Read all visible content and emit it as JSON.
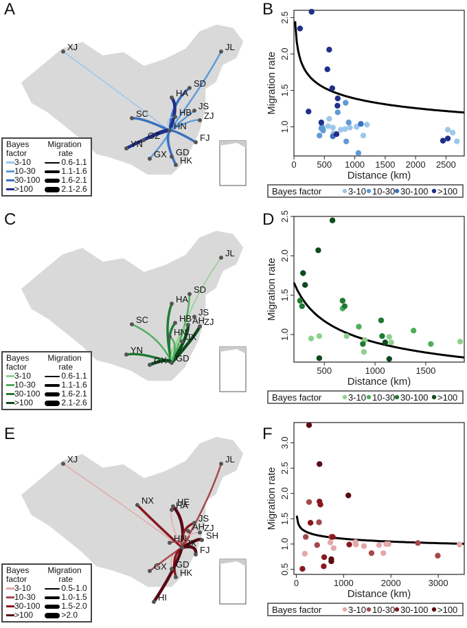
{
  "chart_data": [
    {
      "panel": "A",
      "type": "map",
      "legend": {
        "bayes_title": [
          "Bayes",
          "factor"
        ],
        "rate_title": [
          "Migration",
          "rate"
        ],
        "bayes_levels": [
          "3-10",
          "10-30",
          "30-100",
          ">100"
        ],
        "rate_levels": [
          "0.6-1.1",
          "1.1-1.6",
          "1.6-2.1",
          "2.1-2.6"
        ]
      },
      "colors": [
        "#9cc7ea",
        "#5d9bd6",
        "#3b6fc0",
        "#1f2f8a"
      ],
      "locations": [
        "XJ",
        "JL",
        "SD",
        "HA",
        "HB",
        "JS",
        "SC",
        "GZ",
        "HN",
        "ZJ",
        "FJ",
        "YN",
        "GD",
        "GX",
        "HK"
      ]
    },
    {
      "panel": "B",
      "type": "scatter",
      "xlabel": "Distance (km)",
      "ylabel": "Migration rate",
      "xlim": [
        0,
        2800
      ],
      "ylim": [
        0.6,
        2.6
      ],
      "xticks": [
        0,
        500,
        1000,
        1500,
        2000,
        2500
      ],
      "yticks": [
        1.0,
        1.5,
        2.0,
        2.5
      ],
      "legend_title": "Bayes factor",
      "legend_placement": "bottom",
      "categories": [
        "3-10",
        "10-30",
        "30-100",
        ">100"
      ],
      "colors": [
        "#9cc7ea",
        "#5d9bd6",
        "#3b6fc0",
        "#1f2f8a"
      ],
      "fit": {
        "a": 2.45,
        "k": 0.145,
        "x0": 20
      },
      "series": [
        {
          "name": "3-10",
          "points": [
            [
              580,
              1.11
            ],
            [
              560,
              1.01
            ],
            [
              640,
              0.99
            ],
            [
              770,
              0.96
            ],
            [
              840,
              0.97
            ],
            [
              920,
              0.99
            ],
            [
              1030,
              1.0
            ],
            [
              1200,
              1.03
            ],
            [
              1140,
              0.88
            ],
            [
              2530,
              0.96
            ],
            [
              2610,
              0.92
            ],
            [
              480,
              0.97
            ],
            [
              650,
              0.91
            ],
            [
              2680,
              0.8
            ]
          ]
        },
        {
          "name": "10-30",
          "points": [
            [
              420,
              0.88
            ],
            [
              450,
              0.98
            ],
            [
              480,
              0.95
            ],
            [
              720,
              1.2
            ],
            [
              850,
              1.33
            ],
            [
              900,
              1.06
            ],
            [
              860,
              0.8
            ],
            [
              1060,
              0.64
            ],
            [
              460,
              1.0
            ]
          ]
        },
        {
          "name": "30-100",
          "points": [
            [
              640,
              0.87
            ],
            [
              1100,
              1.04
            ]
          ]
        },
        {
          "name": ">100",
          "points": [
            [
              290,
              2.58
            ],
            [
              100,
              2.35
            ],
            [
              580,
              2.06
            ],
            [
              550,
              1.79
            ],
            [
              630,
              1.53
            ],
            [
              720,
              1.39
            ],
            [
              715,
              1.29
            ],
            [
              240,
              1.21
            ],
            [
              450,
              1.06
            ],
            [
              700,
              0.9
            ],
            [
              2450,
              0.81
            ],
            [
              2530,
              0.84
            ]
          ]
        }
      ]
    },
    {
      "panel": "C",
      "type": "map",
      "legend": {
        "bayes_title": [
          "Bayes",
          "factor"
        ],
        "rate_title": [
          "Migration",
          "rate"
        ],
        "bayes_levels": [
          "3-10",
          "10-30",
          "30-100",
          ">100"
        ],
        "rate_levels": [
          "0.6-1.1",
          "1.1-1.6",
          "1.6-2.1",
          "2.1-2.6"
        ]
      },
      "colors": [
        "#8fd08f",
        "#4fae5c",
        "#1f7a34",
        "#0d4a1c"
      ],
      "locations": [
        "JL",
        "SD",
        "HA",
        "AH",
        "JS",
        "SC",
        "HB",
        "ZJ",
        "JX",
        "HN",
        "YN",
        "GX",
        "GD"
      ]
    },
    {
      "panel": "D",
      "type": "scatter",
      "xlabel": "Distance (km)",
      "ylabel": "Migration rate",
      "xlim": [
        200,
        1880
      ],
      "ylim": [
        0.65,
        2.5
      ],
      "xticks": [
        500,
        1000,
        1500
      ],
      "yticks": [
        1.0,
        1.5,
        2.0,
        2.5
      ],
      "legend_title": "Bayes factor",
      "legend_placement": "bottom",
      "categories": [
        "3-10",
        "10-30",
        "30-100",
        ">100"
      ],
      "colors": [
        "#8fd08f",
        "#4fae5c",
        "#1f7a34",
        "#0d4a1c"
      ],
      "fit": {
        "a": 1.66,
        "k": 0.38,
        "x0": 200
      },
      "series": [
        {
          "name": "3-10",
          "points": [
            [
              370,
              0.95
            ],
            [
              450,
              0.98
            ],
            [
              720,
              0.98
            ],
            [
              900,
              0.93
            ],
            [
              890,
              0.78
            ],
            [
              1140,
              0.97
            ],
            [
              1160,
              0.9
            ],
            [
              1840,
              0.91
            ]
          ]
        },
        {
          "name": "10-30",
          "points": [
            [
              680,
              1.33
            ],
            [
              840,
              1.1
            ],
            [
              1380,
              1.05
            ],
            [
              1550,
              0.88
            ]
          ]
        },
        {
          "name": "30-100",
          "points": [
            [
              260,
              1.43
            ],
            [
              280,
              1.36
            ],
            [
              680,
              1.43
            ],
            [
              700,
              1.36
            ],
            [
              1060,
              1.18
            ],
            [
              1070,
              0.98
            ],
            [
              880,
              0.88
            ]
          ]
        },
        {
          "name": ">100",
          "points": [
            [
              580,
              2.45
            ],
            [
              440,
              2.07
            ],
            [
              290,
              1.78
            ],
            [
              310,
              1.63
            ],
            [
              450,
              0.7
            ],
            [
              1100,
              0.9
            ],
            [
              1140,
              0.69
            ]
          ]
        }
      ]
    },
    {
      "panel": "E",
      "type": "map",
      "legend": {
        "bayes_title": [
          "Bayes",
          "factor"
        ],
        "rate_title": [
          "Migration",
          "rate"
        ],
        "bayes_levels": [
          "3-10",
          "10-30",
          "30-100",
          ">100"
        ],
        "rate_levels": [
          "0.5-1.0",
          "1.0-1.5",
          "1.5-2.0",
          ">2.0"
        ]
      },
      "colors": [
        "#e3a8aa",
        "#a5484d",
        "#8a1820",
        "#5a0a12"
      ],
      "locations": [
        "XJ",
        "JL",
        "NX",
        "HE",
        "HA",
        "AH",
        "JS",
        "SH",
        "ZJ",
        "HN",
        "JX",
        "FJ",
        "GD",
        "GX",
        "HK",
        "HI"
      ]
    },
    {
      "panel": "F",
      "type": "scatter",
      "xlabel": "Distance (km)",
      "ylabel": "Migration rate",
      "xlim": [
        -50,
        3550
      ],
      "ylim": [
        0.4,
        3.4
      ],
      "xticks": [
        0,
        1000,
        2000,
        3000
      ],
      "yticks": [
        0.5,
        1.0,
        1.5,
        2.0,
        2.5,
        3.0
      ],
      "legend_title": "Bayes factor",
      "legend_placement": "bottom",
      "categories": [
        "3-10",
        "10-30",
        "30-100",
        ">100"
      ],
      "colors": [
        "#e3a8aa",
        "#a5484d",
        "#8a1820",
        "#5a0a12"
      ],
      "fit": {
        "a": 1.56,
        "k": 0.075,
        "x0": 10
      },
      "series": [
        {
          "name": "3-10",
          "points": [
            [
              180,
              0.81
            ],
            [
              720,
              1.03
            ],
            [
              790,
              0.92
            ],
            [
              1250,
              1.04
            ],
            [
              1260,
              0.99
            ],
            [
              1430,
              0.96
            ],
            [
              1750,
              0.98
            ],
            [
              1840,
              0.82
            ],
            [
              1900,
              1.0
            ],
            [
              1950,
              1.0
            ],
            [
              3450,
              0.99
            ]
          ]
        },
        {
          "name": "10-30",
          "points": [
            [
              270,
              1.83
            ],
            [
              480,
              1.43
            ],
            [
              200,
              1.14
            ],
            [
              440,
              0.98
            ],
            [
              740,
              1.14
            ],
            [
              1590,
              0.82
            ],
            [
              2570,
              1.02
            ],
            [
              2990,
              0.77
            ]
          ]
        },
        {
          "name": "30-100",
          "points": [
            [
              490,
              1.84
            ],
            [
              510,
              1.78
            ],
            [
              300,
              1.42
            ],
            [
              770,
              1.14
            ],
            [
              1120,
              0.99
            ],
            [
              590,
              0.74
            ],
            [
              580,
              0.56
            ],
            [
              130,
              0.51
            ]
          ]
        },
        {
          "name": ">100",
          "points": [
            [
              270,
              3.35
            ],
            [
              490,
              2.58
            ],
            [
              1100,
              1.96
            ],
            [
              740,
              0.7
            ],
            [
              740,
              0.66
            ]
          ]
        }
      ]
    }
  ],
  "panels": {
    "A": "A",
    "B": "B",
    "C": "C",
    "D": "D",
    "E": "E",
    "F": "F"
  }
}
